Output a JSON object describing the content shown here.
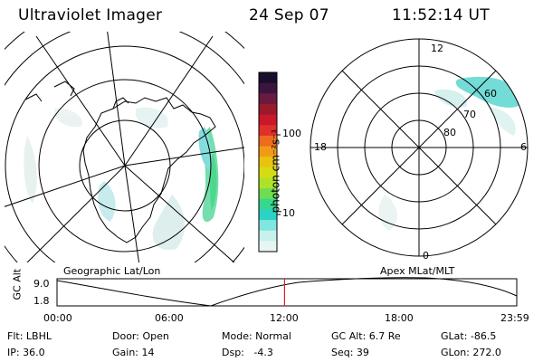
{
  "header": {
    "instrument": "Ultraviolet Imager",
    "date": "24 Sep 07",
    "time": "11:52:14 UT"
  },
  "left_panel": {
    "label": "Geographic Lat/Lon"
  },
  "right_panel": {
    "label": "Apex MLat/MLT",
    "mlt_labels": {
      "top": "12",
      "left": "18",
      "right": "6",
      "bottom": "0"
    },
    "lat_labels": [
      "80",
      "70",
      "60"
    ]
  },
  "colorbar": {
    "unit_label": "photon cm⁻²s⁻¹",
    "ticks": [
      "100",
      "10"
    ],
    "colors": [
      "#1a0d2e",
      "#3b1440",
      "#6b1a3f",
      "#9a1a2a",
      "#c8182a",
      "#e0302a",
      "#ef6a1f",
      "#f29a18",
      "#e8c411",
      "#d6dc14",
      "#aee22a",
      "#6fdd52",
      "#36d88e",
      "#2ad3c4",
      "#7fe6e0",
      "#c8f0ec",
      "#e6f6f4"
    ]
  },
  "timeline": {
    "axis_label": "GC Alt",
    "y_labels": [
      "9.0",
      "1.8"
    ],
    "x_labels": [
      "00:00",
      "06:00",
      "12:00",
      "18:00",
      "23:59"
    ],
    "current_time_marker": "11:52",
    "marker_color": "#e02020"
  },
  "info": {
    "filter": "Flt: LBHL",
    "ip": "IP: 36.0",
    "door": "Door: Open",
    "gain": "Gain: 14",
    "mode": "Mode: Normal",
    "dsp": "Dsp:   -4.3",
    "gc_alt": "GC Alt: 6.7 Re",
    "seq": "Seq: 39",
    "glat": "GLat: -86.5",
    "glon": "GLon: 272.0"
  }
}
